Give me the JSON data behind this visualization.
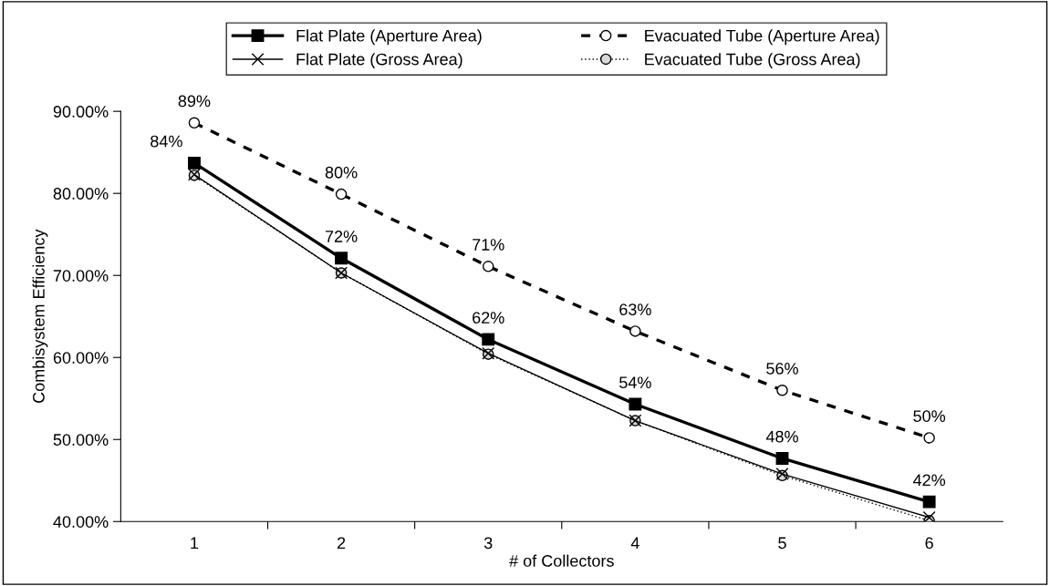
{
  "chart_data": {
    "type": "line",
    "xlabel": "# of Collectors",
    "ylabel": "Combisystem Efficiency",
    "categories": [
      "1",
      "2",
      "3",
      "4",
      "5",
      "6"
    ],
    "ylim": [
      40,
      90
    ],
    "yticks": [
      {
        "value": 40,
        "label": "40.00%"
      },
      {
        "value": 50,
        "label": "50.00%"
      },
      {
        "value": 60,
        "label": "60.00%"
      },
      {
        "value": 70,
        "label": "70.00%"
      },
      {
        "value": 80,
        "label": "80.00%"
      },
      {
        "value": 90,
        "label": "90.00%"
      }
    ],
    "grid": false,
    "legend": "top",
    "series": [
      {
        "name": "Flat Plate (Aperture Area)",
        "color": "#000000",
        "marker": "square",
        "line_style": "solid",
        "values": [
          83.7,
          72.1,
          62.2,
          54.3,
          47.7,
          42.4
        ],
        "value_labels": [
          "84%",
          "72%",
          "62%",
          "54%",
          "48%",
          "42%"
        ]
      },
      {
        "name": "Evacuated Tube (Aperture Area)",
        "color": "#000000",
        "marker": "circle",
        "line_style": "dashed",
        "values": [
          88.6,
          79.9,
          71.1,
          63.2,
          56.0,
          50.2
        ],
        "value_labels": [
          "89%",
          "80%",
          "71%",
          "63%",
          "56%",
          "50%"
        ]
      },
      {
        "name": "Flat Plate (Gross Area)",
        "color": "#000000",
        "marker": "cross",
        "line_style": "solid",
        "values": [
          82.3,
          70.3,
          60.5,
          52.3,
          45.8,
          40.5
        ]
      },
      {
        "name": "Evacuated Tube (Gross Area)",
        "color": "#000000",
        "marker": "circle",
        "line_style": "dotted",
        "values": [
          82.2,
          70.3,
          60.4,
          52.3,
          45.6,
          40.1
        ]
      }
    ]
  }
}
